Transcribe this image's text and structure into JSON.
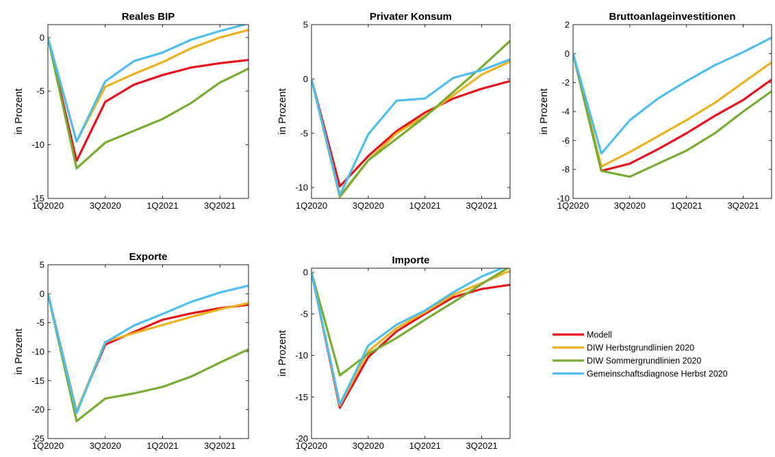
{
  "legend": {
    "position": "right, below top-right panel",
    "items": [
      "Modell",
      "DIW Herbstgrundlinien 2020",
      "DIW Sommergrundlinien 2020",
      "Gemeinschaftsdiagnose Herbst 2020"
    ]
  },
  "series_colors": {
    "Modell": "#e8111b",
    "DIW Herbstgrundlinien 2020": "#edb120",
    "DIW Sommergrundlinien 2020": "#77ac30",
    "Gemeinschaftsdiagnose Herbst 2020": "#4dbeee"
  },
  "chart_data": [
    {
      "type": "line",
      "title": "Reales BIP",
      "xlabel": "",
      "ylabel": "in Prozent",
      "x": [
        "1Q2020",
        "2Q2020",
        "3Q2020",
        "4Q2020",
        "1Q2021",
        "2Q2021",
        "3Q2021",
        "4Q2021"
      ],
      "xticklabels": [
        "1Q2020",
        "3Q2020",
        "1Q2021",
        "3Q2021"
      ],
      "ylim": [
        -15,
        1.2
      ],
      "yticks": [
        -15,
        -10,
        -5,
        0
      ],
      "grid": false,
      "series": [
        {
          "name": "Modell",
          "values": [
            0,
            -11.5,
            -6.0,
            -4.4,
            -3.5,
            -2.8,
            -2.4,
            -2.1
          ]
        },
        {
          "name": "DIW Herbstgrundlinien 2020",
          "values": [
            0,
            -9.7,
            -4.6,
            -3.4,
            -2.3,
            -1.0,
            0.0,
            0.7
          ]
        },
        {
          "name": "DIW Sommergrundlinien 2020",
          "values": [
            0,
            -12.2,
            -9.8,
            -8.7,
            -7.6,
            -6.1,
            -4.2,
            -2.9
          ]
        },
        {
          "name": "Gemeinschaftsdiagnose Herbst 2020",
          "values": [
            0,
            -9.7,
            -4.1,
            -2.2,
            -1.4,
            -0.2,
            0.6,
            1.3
          ]
        }
      ]
    },
    {
      "type": "line",
      "title": "Privater Konsum",
      "xlabel": "",
      "ylabel": "in Prozent",
      "x": [
        "1Q2020",
        "2Q2020",
        "3Q2020",
        "4Q2020",
        "1Q2021",
        "2Q2021",
        "3Q2021",
        "4Q2021"
      ],
      "xticklabels": [
        "1Q2020",
        "3Q2020",
        "1Q2021",
        "3Q2021"
      ],
      "ylim": [
        -11,
        5
      ],
      "yticks": [
        -10,
        -5,
        0,
        5
      ],
      "grid": false,
      "series": [
        {
          "name": "Modell",
          "values": [
            0,
            -9.9,
            -7.1,
            -4.8,
            -3.1,
            -1.8,
            -0.9,
            -0.2
          ]
        },
        {
          "name": "DIW Herbstgrundlinien 2020",
          "values": [
            0,
            -10.9,
            -7.5,
            -5.0,
            -3.4,
            -1.5,
            0.4,
            1.6
          ]
        },
        {
          "name": "DIW Sommergrundlinien 2020",
          "values": [
            0,
            -10.8,
            -7.5,
            -5.5,
            -3.5,
            -1.2,
            1.1,
            3.5
          ]
        },
        {
          "name": "Gemeinschaftsdiagnose Herbst 2020",
          "values": [
            0,
            -10.7,
            -5.1,
            -2.0,
            -1.8,
            0.1,
            0.8,
            1.8
          ]
        }
      ]
    },
    {
      "type": "line",
      "title": "Bruttoanlageinvestitionen",
      "xlabel": "",
      "ylabel": "in Prozent",
      "x": [
        "1Q2020",
        "2Q2020",
        "3Q2020",
        "4Q2020",
        "1Q2021",
        "2Q2021",
        "3Q2021",
        "4Q2021"
      ],
      "xticklabels": [
        "1Q2020",
        "3Q2020",
        "1Q2021",
        "3Q2021"
      ],
      "ylim": [
        -10,
        2
      ],
      "yticks": [
        -10,
        -8,
        -6,
        -4,
        -2,
        0,
        2
      ],
      "grid": false,
      "series": [
        {
          "name": "Modell",
          "values": [
            0,
            -8.1,
            -7.6,
            -6.6,
            -5.5,
            -4.3,
            -3.2,
            -1.8
          ]
        },
        {
          "name": "DIW Herbstgrundlinien 2020",
          "values": [
            0,
            -7.8,
            -6.8,
            -5.7,
            -4.6,
            -3.4,
            -2.0,
            -0.6
          ]
        },
        {
          "name": "DIW Sommergrundlinien 2020",
          "values": [
            0,
            -8.1,
            -8.5,
            -7.6,
            -6.7,
            -5.5,
            -4.0,
            -2.6
          ]
        },
        {
          "name": "Gemeinschaftsdiagnose Herbst 2020",
          "values": [
            0,
            -6.9,
            -4.6,
            -3.1,
            -1.9,
            -0.8,
            0.1,
            1.1
          ]
        }
      ]
    },
    {
      "type": "line",
      "title": "Exporte",
      "xlabel": "",
      "ylabel": "in Prozent",
      "x": [
        "1Q2020",
        "2Q2020",
        "3Q2020",
        "4Q2020",
        "1Q2021",
        "2Q2021",
        "3Q2021",
        "4Q2021"
      ],
      "xticklabels": [
        "1Q2020",
        "3Q2020",
        "1Q2021",
        "3Q2021"
      ],
      "ylim": [
        -25,
        5
      ],
      "yticks": [
        -25,
        -20,
        -15,
        -10,
        -5,
        0,
        5
      ],
      "grid": false,
      "series": [
        {
          "name": "Modell",
          "values": [
            0,
            -20.3,
            -8.8,
            -6.6,
            -4.5,
            -3.4,
            -2.5,
            -1.9
          ]
        },
        {
          "name": "DIW Herbstgrundlinien 2020",
          "values": [
            0,
            -20.3,
            -8.3,
            -6.8,
            -5.4,
            -4.0,
            -2.7,
            -1.6
          ]
        },
        {
          "name": "DIW Sommergrundlinien 2020",
          "values": [
            0,
            -22.0,
            -18.1,
            -17.2,
            -16.1,
            -14.3,
            -11.9,
            -9.6
          ]
        },
        {
          "name": "Gemeinschaftsdiagnose Herbst 2020",
          "values": [
            0,
            -20.6,
            -8.4,
            -5.5,
            -3.5,
            -1.4,
            0.2,
            1.4
          ]
        }
      ]
    },
    {
      "type": "line",
      "title": "Importe",
      "xlabel": "",
      "ylabel": "in Prozent",
      "x": [
        "1Q2020",
        "2Q2020",
        "3Q2020",
        "4Q2020",
        "1Q2021",
        "2Q2021",
        "3Q2021",
        "4Q2021"
      ],
      "xticklabels": [
        "1Q2020",
        "3Q2020",
        "1Q2021",
        "3Q2021"
      ],
      "ylim": [
        -20,
        0.5
      ],
      "yticks": [
        -20,
        -15,
        -10,
        -5,
        0
      ],
      "grid": false,
      "series": [
        {
          "name": "Modell",
          "values": [
            0,
            -16.3,
            -10.2,
            -7.1,
            -5.0,
            -3.0,
            -2.0,
            -1.5
          ]
        },
        {
          "name": "DIW Herbstgrundlinien 2020",
          "values": [
            0,
            -16.0,
            -9.5,
            -6.7,
            -4.8,
            -2.7,
            -1.3,
            0.2
          ]
        },
        {
          "name": "DIW Sommergrundlinien 2020",
          "values": [
            0,
            -12.4,
            -9.8,
            -7.9,
            -5.7,
            -3.6,
            -1.4,
            0.7
          ]
        },
        {
          "name": "Gemeinschaftsdiagnose Herbst 2020",
          "values": [
            0,
            -15.9,
            -8.8,
            -6.3,
            -4.6,
            -2.4,
            -0.5,
            0.9
          ]
        }
      ]
    }
  ]
}
